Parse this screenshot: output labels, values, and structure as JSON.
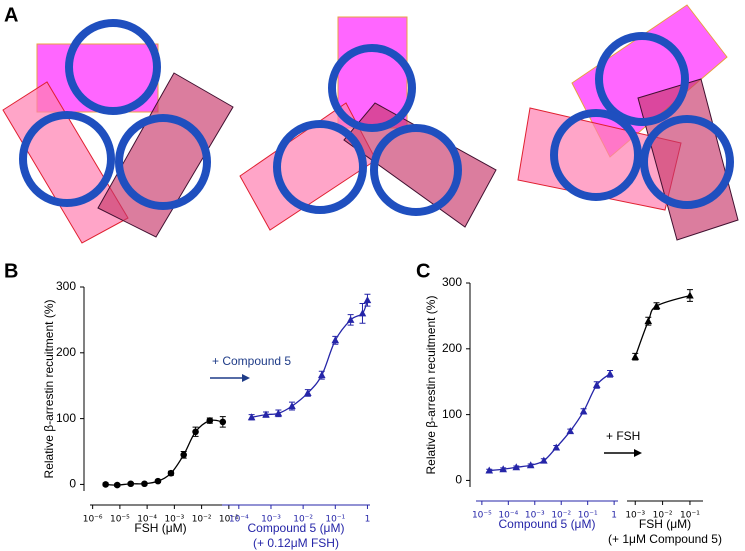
{
  "panel_labels": [
    "A",
    "B",
    "C"
  ],
  "chart_data": [
    {
      "type": "line",
      "y_label": "Relative β-arrestin recuitment (%)",
      "ylim": [
        -10,
        300
      ],
      "yticks": [
        0,
        100,
        200,
        300
      ],
      "log_x": true,
      "annotation": "+ Compound 5",
      "annotation_color": "#1f3c88",
      "series": [
        {
          "color": "#000000",
          "marker": "circle",
          "x_label": "FSH (μM)",
          "xlim": [
            8e-07,
            0.12
          ],
          "xticks": [
            {
              "value": 1e-06,
              "label": "10⁻⁶"
            },
            {
              "value": 1e-05,
              "label": "10⁻⁵"
            },
            {
              "value": 0.0001,
              "label": "10⁻⁴"
            },
            {
              "value": 0.001,
              "label": "10⁻³"
            },
            {
              "value": 0.01,
              "label": "10⁻²"
            },
            {
              "value": 0.1,
              "label": "10⁻¹"
            }
          ],
          "x": [
            3e-06,
            8e-06,
            2.5e-05,
            8e-05,
            0.00025,
            0.00075,
            0.0022,
            0.006,
            0.02,
            0.06
          ],
          "values": [
            0,
            -1,
            1,
            1,
            5,
            17,
            45,
            80,
            97,
            95
          ],
          "errors": [
            2,
            2,
            2,
            2,
            2,
            3,
            5,
            7,
            4,
            8
          ]
        },
        {
          "color": "#2525a8",
          "marker": "triangle",
          "x_label": "Compound 5 (μM)",
          "x_sublabel": "(+ 0.12μM FSH)",
          "xlim": [
            3e-05,
            1.2
          ],
          "xticks": [
            {
              "value": 0.0001,
              "label": "10⁻⁴"
            },
            {
              "value": 0.001,
              "label": "10⁻³"
            },
            {
              "value": 0.01,
              "label": "10⁻²"
            },
            {
              "value": 0.1,
              "label": "10⁻¹"
            },
            1
          ],
          "x": [
            0.00025,
            0.0007,
            0.0017,
            0.0045,
            0.014,
            0.038,
            0.1,
            0.3,
            0.7,
            1
          ],
          "values": [
            102,
            106,
            108,
            119,
            139,
            166,
            219,
            250,
            260,
            280
          ],
          "errors": [
            4,
            4,
            5,
            6,
            5,
            6,
            6,
            8,
            15,
            9
          ]
        }
      ]
    },
    {
      "type": "line",
      "y_label": "Relative β-arrestin recuitment (%)",
      "ylim": [
        -10,
        300
      ],
      "yticks": [
        0,
        100,
        200,
        300
      ],
      "log_x": true,
      "annotation": "+ FSH",
      "annotation_color": "#000000",
      "series": [
        {
          "color": "#2525a8",
          "marker": "triangle",
          "x_label": "Compound 5 (μM)",
          "xlim": [
            6e-06,
            1.4
          ],
          "xticks": [
            {
              "value": 1e-05,
              "label": "10⁻⁵"
            },
            {
              "value": 0.0001,
              "label": "10⁻⁴"
            },
            {
              "value": 0.001,
              "label": "10⁻³"
            },
            {
              "value": 0.01,
              "label": "10⁻²"
            },
            {
              "value": 0.1,
              "label": "10⁻¹"
            },
            1
          ],
          "x": [
            1.9e-05,
            6.4e-05,
            0.0002,
            0.0007,
            0.0022,
            0.0065,
            0.022,
            0.07,
            0.22,
            0.7
          ],
          "values": [
            15,
            17,
            20,
            23,
            30,
            50,
            75,
            105,
            145,
            162
          ],
          "errors": [
            2,
            2,
            2,
            2,
            3,
            3,
            3,
            4,
            5,
            5
          ]
        },
        {
          "color": "#000000",
          "marker": "triangle",
          "x_label": "FSH (μM)",
          "x_sublabel": "(+ 1μM Compound 5)",
          "xlim": [
            0.0005,
            0.3
          ],
          "xticks": [
            {
              "value": 0.001,
              "label": "10⁻³"
            },
            {
              "value": 0.01,
              "label": "10⁻²"
            },
            {
              "value": 0.1,
              "label": "10⁻¹"
            }
          ],
          "x": [
            0.001,
            0.003,
            0.006,
            0.1
          ],
          "values": [
            188,
            242,
            265,
            281
          ],
          "errors": [
            5,
            6,
            5,
            9
          ]
        }
      ]
    }
  ]
}
